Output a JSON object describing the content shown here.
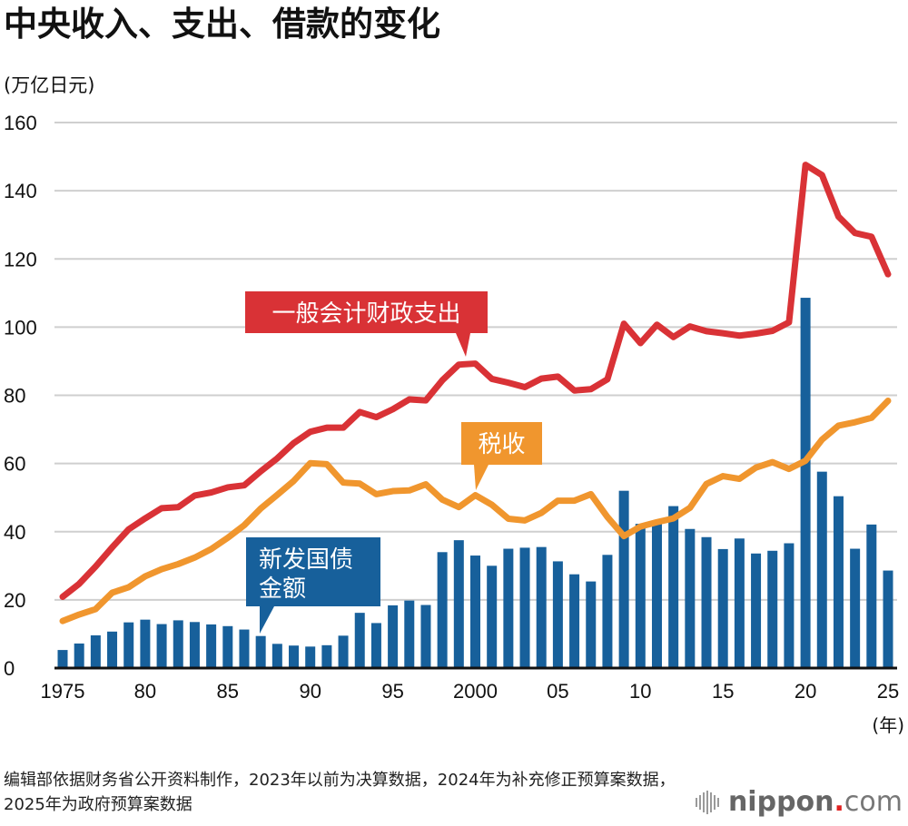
{
  "title": "中央收入、支出、借款的变化",
  "unit_label": "(万亿日元)",
  "source_note": "编辑部依据财务省公开资料制作，2023年以前为决算数据，2024年为补充修正预算案数据，2025年为政府预算案数据",
  "logo": {
    "name": "nippon",
    "dot": ".",
    "tld": "com"
  },
  "colors": {
    "expenditure": "#d93236",
    "tax": "#f0962e",
    "bonds": "#17609b",
    "grid": "#cfcfcf",
    "axis": "#111111"
  },
  "chart_data": {
    "type": "bar+line",
    "title": "中央收入、支出、借款的变化",
    "ylabel": "(万亿日元)",
    "xlabel": "(年)",
    "ylim": [
      0,
      160
    ],
    "yticks": [
      0,
      20,
      40,
      60,
      80,
      100,
      120,
      140,
      160
    ],
    "grid": true,
    "x_range": [
      1975,
      2025
    ],
    "xticks": [
      {
        "year": 1975,
        "label": "1975"
      },
      {
        "year": 1980,
        "label": "80"
      },
      {
        "year": 1985,
        "label": "85"
      },
      {
        "year": 1990,
        "label": "90"
      },
      {
        "year": 1995,
        "label": "95"
      },
      {
        "year": 2000,
        "label": "2000"
      },
      {
        "year": 2005,
        "label": "05"
      },
      {
        "year": 2010,
        "label": "10"
      },
      {
        "year": 2015,
        "label": "15"
      },
      {
        "year": 2020,
        "label": "20"
      },
      {
        "year": 2025,
        "label": "25"
      }
    ],
    "x": [
      1975,
      1976,
      1977,
      1978,
      1979,
      1980,
      1981,
      1982,
      1983,
      1984,
      1985,
      1986,
      1987,
      1988,
      1989,
      1990,
      1991,
      1992,
      1993,
      1994,
      1995,
      1996,
      1997,
      1998,
      1999,
      2000,
      2001,
      2002,
      2003,
      2004,
      2005,
      2006,
      2007,
      2008,
      2009,
      2010,
      2011,
      2012,
      2013,
      2014,
      2015,
      2016,
      2017,
      2018,
      2019,
      2020,
      2021,
      2022,
      2023,
      2024,
      2025
    ],
    "series": [
      {
        "name": "新发国债金额",
        "kind": "bar",
        "color_key": "bonds",
        "label_lines": [
          "新发国债",
          "金额"
        ],
        "label_year": 1987,
        "values": [
          5.3,
          7.2,
          9.6,
          10.7,
          13.4,
          14.2,
          12.9,
          14.0,
          13.5,
          12.8,
          12.3,
          11.3,
          9.4,
          7.1,
          6.6,
          6.3,
          6.7,
          9.5,
          16.2,
          13.2,
          18.4,
          19.8,
          18.5,
          34.0,
          37.5,
          33.0,
          30.0,
          35.0,
          35.3,
          35.5,
          31.3,
          27.5,
          25.4,
          33.2,
          52.0,
          42.3,
          42.8,
          47.5,
          40.8,
          38.4,
          34.9,
          38.0,
          33.6,
          34.4,
          36.6,
          108.6,
          57.6,
          50.4,
          35.0,
          42.1,
          28.6
        ]
      },
      {
        "name": "一般会计财政支出",
        "kind": "line",
        "color_key": "expenditure",
        "label_lines": [
          "一般会计财政支出"
        ],
        "label_year": 2000,
        "values": [
          20.9,
          24.7,
          29.8,
          35.4,
          40.7,
          43.9,
          46.9,
          47.2,
          50.6,
          51.5,
          53.0,
          53.6,
          57.7,
          61.5,
          66.0,
          69.3,
          70.5,
          70.5,
          75.1,
          73.6,
          75.9,
          78.8,
          78.5,
          84.4,
          89.0,
          89.3,
          84.8,
          83.7,
          82.4,
          84.9,
          85.5,
          81.4,
          81.8,
          84.7,
          101.0,
          95.3,
          100.7,
          97.1,
          100.2,
          98.8,
          98.2,
          97.5,
          98.1,
          98.9,
          101.4,
          147.6,
          144.6,
          132.4,
          127.6,
          126.5,
          115.5
        ]
      },
      {
        "name": "税收",
        "kind": "line",
        "color_key": "tax",
        "label_lines": [
          "税收"
        ],
        "label_year": 2000,
        "values": [
          13.8,
          15.7,
          17.3,
          22.1,
          23.7,
          26.9,
          29.0,
          30.5,
          32.4,
          34.9,
          38.2,
          41.9,
          46.8,
          50.8,
          54.9,
          60.1,
          59.8,
          54.4,
          54.1,
          51.0,
          51.9,
          52.1,
          53.9,
          49.4,
          47.2,
          50.7,
          47.9,
          43.8,
          43.3,
          45.5,
          49.1,
          49.1,
          51.0,
          44.3,
          38.7,
          41.5,
          42.8,
          43.9,
          47.0,
          54.0,
          56.3,
          55.5,
          58.8,
          60.4,
          58.4,
          60.8,
          67.0,
          71.1,
          72.1,
          73.4,
          78.4
        ]
      }
    ]
  }
}
